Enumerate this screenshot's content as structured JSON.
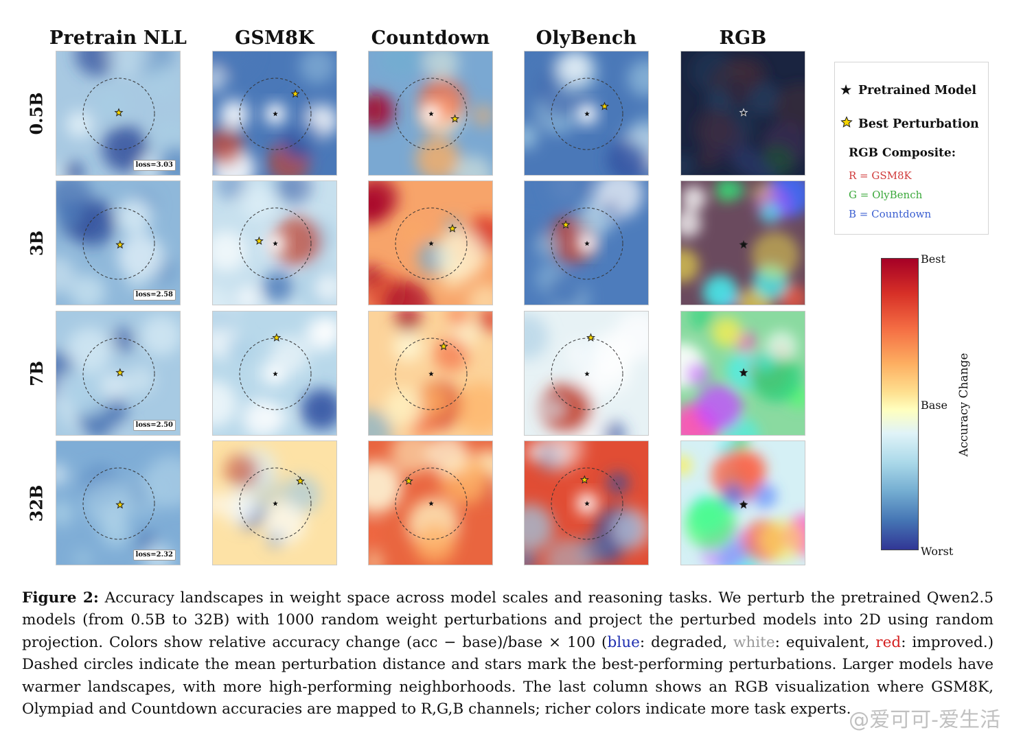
{
  "columns": [
    "Pretrain NLL",
    "GSM8K",
    "Countdown",
    "OlyBench",
    "RGB"
  ],
  "rows": [
    "0.5B",
    "3B",
    "7B",
    "32B"
  ],
  "panels": [
    [
      {
        "bg": "#a8c9e2",
        "center_glow": false,
        "best": [
          0.5,
          0.49
        ],
        "loss": "loss=3.03"
      },
      {
        "bg": "#4a78b8",
        "center_glow": true,
        "best": [
          0.66,
          0.34
        ],
        "loss": ""
      },
      {
        "bg": "#7aa8d2",
        "center_glow": true,
        "best": [
          0.69,
          0.54
        ],
        "loss": ""
      },
      {
        "bg": "#4a78b8",
        "center_glow": true,
        "best": [
          0.64,
          0.44
        ],
        "loss": ""
      },
      {
        "bg": "#1a2440",
        "center_glow": false,
        "best": [
          0.5,
          0.49
        ],
        "loss": ""
      }
    ],
    [
      {
        "bg": "#8fb8da",
        "center_glow": false,
        "best": [
          0.51,
          0.51
        ],
        "loss": "loss=2.58"
      },
      {
        "bg": "#c7e0ee",
        "center_glow": true,
        "best": [
          0.37,
          0.48
        ],
        "loss": ""
      },
      {
        "bg": "#f7a46a",
        "center_glow": false,
        "best": [
          0.67,
          0.38
        ],
        "loss": ""
      },
      {
        "bg": "#4d7cbc",
        "center_glow": true,
        "best": [
          0.33,
          0.35
        ],
        "loss": ""
      },
      {
        "bg": "#6a4a5e",
        "center_glow": false,
        "best": [
          0.5,
          0.51
        ],
        "loss": ""
      }
    ],
    [
      {
        "bg": "#a7cae3",
        "center_glow": false,
        "best": [
          0.51,
          0.49
        ],
        "loss": "loss=2.50"
      },
      {
        "bg": "#b8d8ea",
        "center_glow": true,
        "best": [
          0.51,
          0.21
        ],
        "loss": ""
      },
      {
        "bg": "#fcd39a",
        "center_glow": false,
        "best": [
          0.6,
          0.28
        ],
        "loss": ""
      },
      {
        "bg": "#e7f2f5",
        "center_glow": false,
        "best": [
          0.53,
          0.21
        ],
        "loss": ""
      },
      {
        "bg": "#8adaa0",
        "center_glow": false,
        "best": [
          0.5,
          0.49
        ],
        "loss": ""
      }
    ],
    [
      {
        "bg": "#7fadd6",
        "center_glow": false,
        "best": [
          0.51,
          0.51
        ],
        "loss": "loss=2.32"
      },
      {
        "bg": "#fde2a6",
        "center_glow": false,
        "best": [
          0.7,
          0.32
        ],
        "loss": ""
      },
      {
        "bg": "#e9653f",
        "center_glow": false,
        "best": [
          0.32,
          0.32
        ],
        "loss": ""
      },
      {
        "bg": "#e14d34",
        "center_glow": true,
        "best": [
          0.48,
          0.31
        ],
        "loss": ""
      },
      {
        "bg": "#d5f0f5",
        "center_glow": false,
        "best": [
          0.5,
          0.51
        ],
        "loss": ""
      }
    ]
  ],
  "blob_palettes": {
    "cool": [
      "#e3f1f8",
      "#c4dfee",
      "#5d8cc3",
      "#3f6aaf",
      "#dbeef7",
      "#2e4c9a",
      "#a9cfe6"
    ],
    "pale": [
      "#ffffff",
      "#dceef6",
      "#4a78b8",
      "#2f4fa0",
      "#fbfdfe",
      "#9ec8e2",
      "#c1422f"
    ],
    "warm": [
      "#fff4c4",
      "#a50026",
      "#d73027",
      "#f46d43",
      "#ffffe0",
      "#74add1",
      "#fdae61"
    ],
    "rgb": [
      "#ff4fc0",
      "#4cff6a",
      "#3c6cff",
      "#ffef4a",
      "#46f0f0",
      "#c44cff",
      "#ff5a3c",
      "#ffffff",
      "#2ad27c"
    ]
  },
  "legend": {
    "pretrained": "Pretrained Model",
    "best": "Best Perturbation",
    "composite_title": "RGB Composite:",
    "r": "R = GSM8K",
    "g": "G = OlyBench",
    "b": "B = Countdown",
    "r_color": "#d03a3a",
    "g_color": "#3aa83a",
    "b_color": "#3a5ed0"
  },
  "colorbar": {
    "title": "Accuracy Change",
    "top": "Best",
    "mid": "Base",
    "bottom": "Worst"
  },
  "caption": {
    "label": "Figure 2:",
    "part1": " Accuracy landscapes in weight space across model scales and reasoning tasks. We perturb the pretrained Qwen2.5 models (from 0.5B to 32B) with 1000 random weight perturbations and project the perturbed models into 2D using random projection. Colors show relative accuracy change (acc − base)/base × 100 (",
    "blue": "blue",
    "part2": ": degraded, ",
    "white": "white",
    "part3": ": equivalent, ",
    "red": "red",
    "part4": ": improved.) Dashed circles indicate the mean perturbation distance and stars mark the best-performing perturbations. Larger models have warmer landscapes, with more high-performing neighborhoods. The last column shows an RGB visualization where GSM8K, Olympiad and Countdown accuracies are mapped to R,G,B channels; richer colors indicate more task experts.",
    "blue_color": "#1f2fb0",
    "white_color": "#9a9a9a",
    "red_color": "#d42020"
  },
  "watermark": "@爱可可-爱生活"
}
